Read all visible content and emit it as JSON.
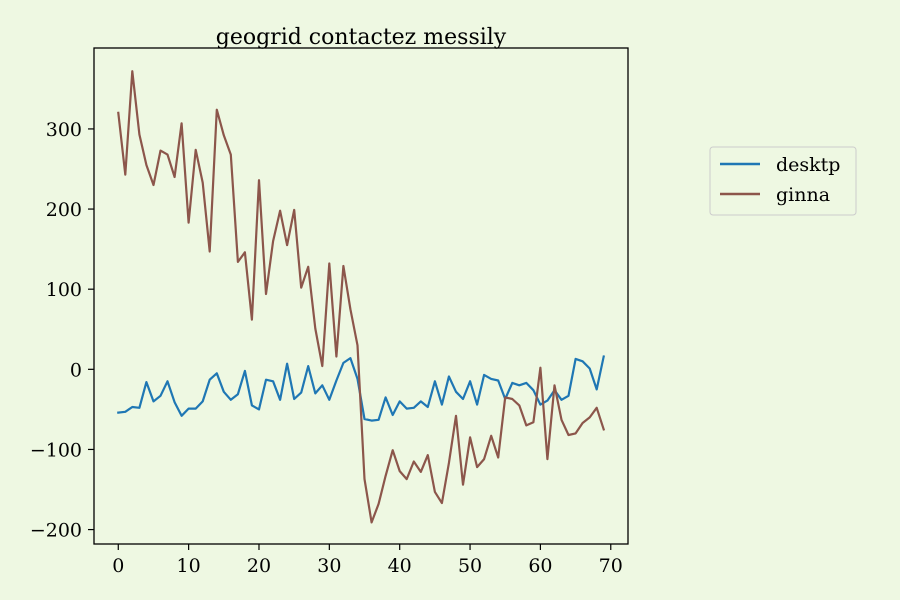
{
  "chart_data": {
    "type": "line",
    "title": "geogrid contactez messily",
    "xlabel": "",
    "ylabel": "",
    "xlim": [
      -3.45,
      72.45
    ],
    "ylim": [
      -218,
      401
    ],
    "x_ticks": [
      0,
      10,
      20,
      30,
      40,
      50,
      60,
      70
    ],
    "y_ticks": [
      -200,
      -100,
      0,
      100,
      200,
      300
    ],
    "y_tick_labels": [
      "−200",
      "−100",
      "0",
      "100",
      "200",
      "300"
    ],
    "grid": false,
    "legend_position": "right, outside plot",
    "x": [
      0,
      1,
      2,
      3,
      4,
      5,
      6,
      7,
      8,
      9,
      10,
      11,
      12,
      13,
      14,
      15,
      16,
      17,
      18,
      19,
      20,
      21,
      22,
      23,
      24,
      25,
      26,
      27,
      28,
      29,
      30,
      31,
      32,
      33,
      34,
      35,
      36,
      37,
      38,
      39,
      40,
      41,
      42,
      43,
      44,
      45,
      46,
      47,
      48,
      49,
      50,
      51,
      52,
      53,
      54,
      55,
      56,
      57,
      58,
      59,
      60,
      61,
      62,
      63,
      64,
      65,
      66,
      67,
      68,
      69
    ],
    "series": [
      {
        "name": "desktp",
        "color": "#1f77b4",
        "values": [
          -54,
          -53,
          -47,
          -48,
          -16,
          -40,
          -33,
          -15,
          -41,
          -58,
          -49,
          -49,
          -40,
          -13,
          -5,
          -28,
          -38,
          -31,
          -2,
          -45,
          -50,
          -13,
          -15,
          -38,
          7,
          -37,
          -29,
          4,
          -30,
          -20,
          -38,
          -14,
          8,
          14,
          -12,
          -62,
          -64,
          -63,
          -35,
          -57,
          -40,
          -49,
          -48,
          -40,
          -47,
          -15,
          -44,
          -9,
          -28,
          -37,
          -15,
          -44,
          -7,
          -12,
          -14,
          -37,
          -17,
          -20,
          -17,
          -26,
          -44,
          -39,
          -26,
          -38,
          -33,
          13,
          10,
          1,
          -25,
          16
        ]
      },
      {
        "name": "ginna",
        "color": "#8c564b",
        "values": [
          320,
          243,
          372,
          293,
          255,
          230,
          273,
          268,
          240,
          307,
          183,
          274,
          233,
          147,
          324,
          292,
          268,
          134,
          146,
          62,
          236,
          94,
          160,
          198,
          155,
          199,
          102,
          128,
          51,
          4,
          132,
          16,
          129,
          75,
          30,
          -137,
          -191,
          -168,
          -133,
          -101,
          -127,
          -137,
          -115,
          -128,
          -107,
          -153,
          -167,
          -117,
          -58,
          -144,
          -85,
          -122,
          -112,
          -83,
          -110,
          -35,
          -37,
          -45,
          -70,
          -66,
          2,
          -112,
          -20,
          -63,
          -82,
          -80,
          -67,
          -60,
          -48,
          -75
        ]
      }
    ]
  }
}
